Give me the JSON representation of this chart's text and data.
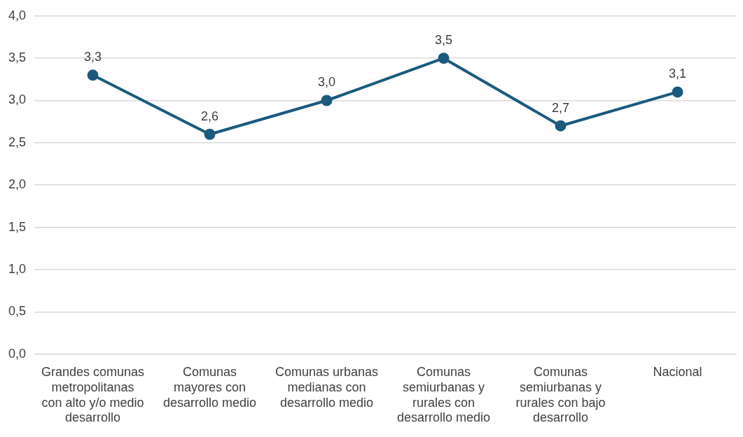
{
  "chart_data": {
    "type": "line",
    "categories": [
      "Grandes comunas metropolitanas con alto y/o medio desarrollo",
      "Comunas mayores con desarrollo medio",
      "Comunas urbanas medianas con desarrollo medio",
      "Comunas semiurbanas y rurales con desarrollo medio",
      "Comunas semiurbanas y rurales con bajo desarrollo",
      "Nacional"
    ],
    "series": [
      {
        "color": "#1b5a7e",
        "values": [
          3.3,
          2.6,
          3.0,
          3.5,
          2.7,
          3.1
        ],
        "value_labels": [
          "3,3",
          "2,6",
          "3,0",
          "3,5",
          "2,7",
          "3,1"
        ]
      }
    ],
    "ylim": [
      0,
      4
    ],
    "yticks": [
      {
        "value": 0,
        "label": "0,0"
      },
      {
        "value": 0.5,
        "label": "0,5"
      },
      {
        "value": 1,
        "label": "1,0"
      },
      {
        "value": 1.5,
        "label": "1,5"
      },
      {
        "value": 2,
        "label": "2,0"
      },
      {
        "value": 2.5,
        "label": "2,5"
      },
      {
        "value": 3,
        "label": "3,0"
      },
      {
        "value": 3.5,
        "label": "3,5"
      },
      {
        "value": 4,
        "label": "4,0"
      }
    ],
    "grid": "y",
    "legend": false,
    "marker": "circle",
    "line_style": "solid"
  }
}
